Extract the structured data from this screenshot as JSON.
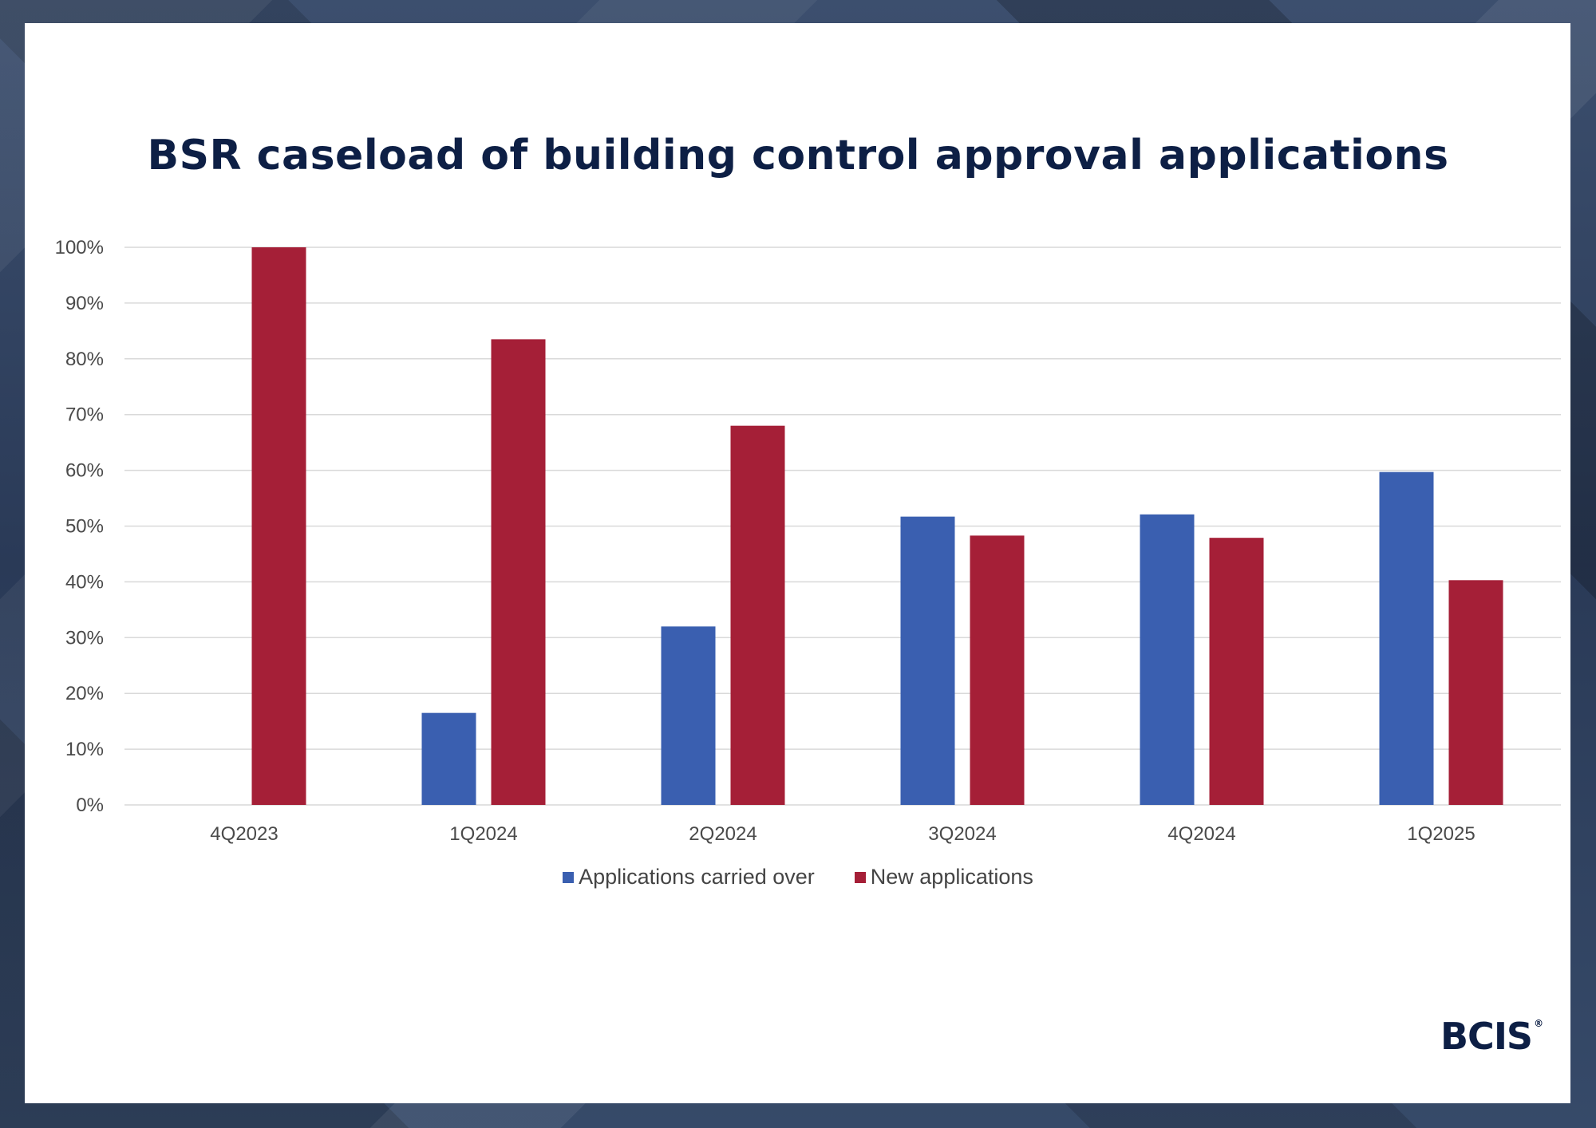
{
  "chart_data": {
    "type": "bar",
    "title": "BSR caseload of building control approval applications",
    "categories": [
      "4Q2023",
      "1Q2024",
      "2Q2024",
      "3Q2024",
      "4Q2024",
      "1Q2025"
    ],
    "series": [
      {
        "name": "Applications carried over",
        "color": "#3a5fb0",
        "values": [
          0,
          16.5,
          32,
          51.7,
          52.1,
          59.7
        ]
      },
      {
        "name": "New applications",
        "color": "#a51f37",
        "values": [
          100,
          83.5,
          68,
          48.3,
          47.9,
          40.3
        ]
      }
    ],
    "yticks": [
      "0%",
      "10%",
      "20%",
      "30%",
      "40%",
      "50%",
      "60%",
      "70%",
      "80%",
      "90%",
      "100%"
    ],
    "ylim": [
      0,
      100
    ],
    "grid": true,
    "legend_position": "bottom"
  },
  "brand": {
    "logo_text": "BCIS",
    "logo_mark": "®"
  }
}
